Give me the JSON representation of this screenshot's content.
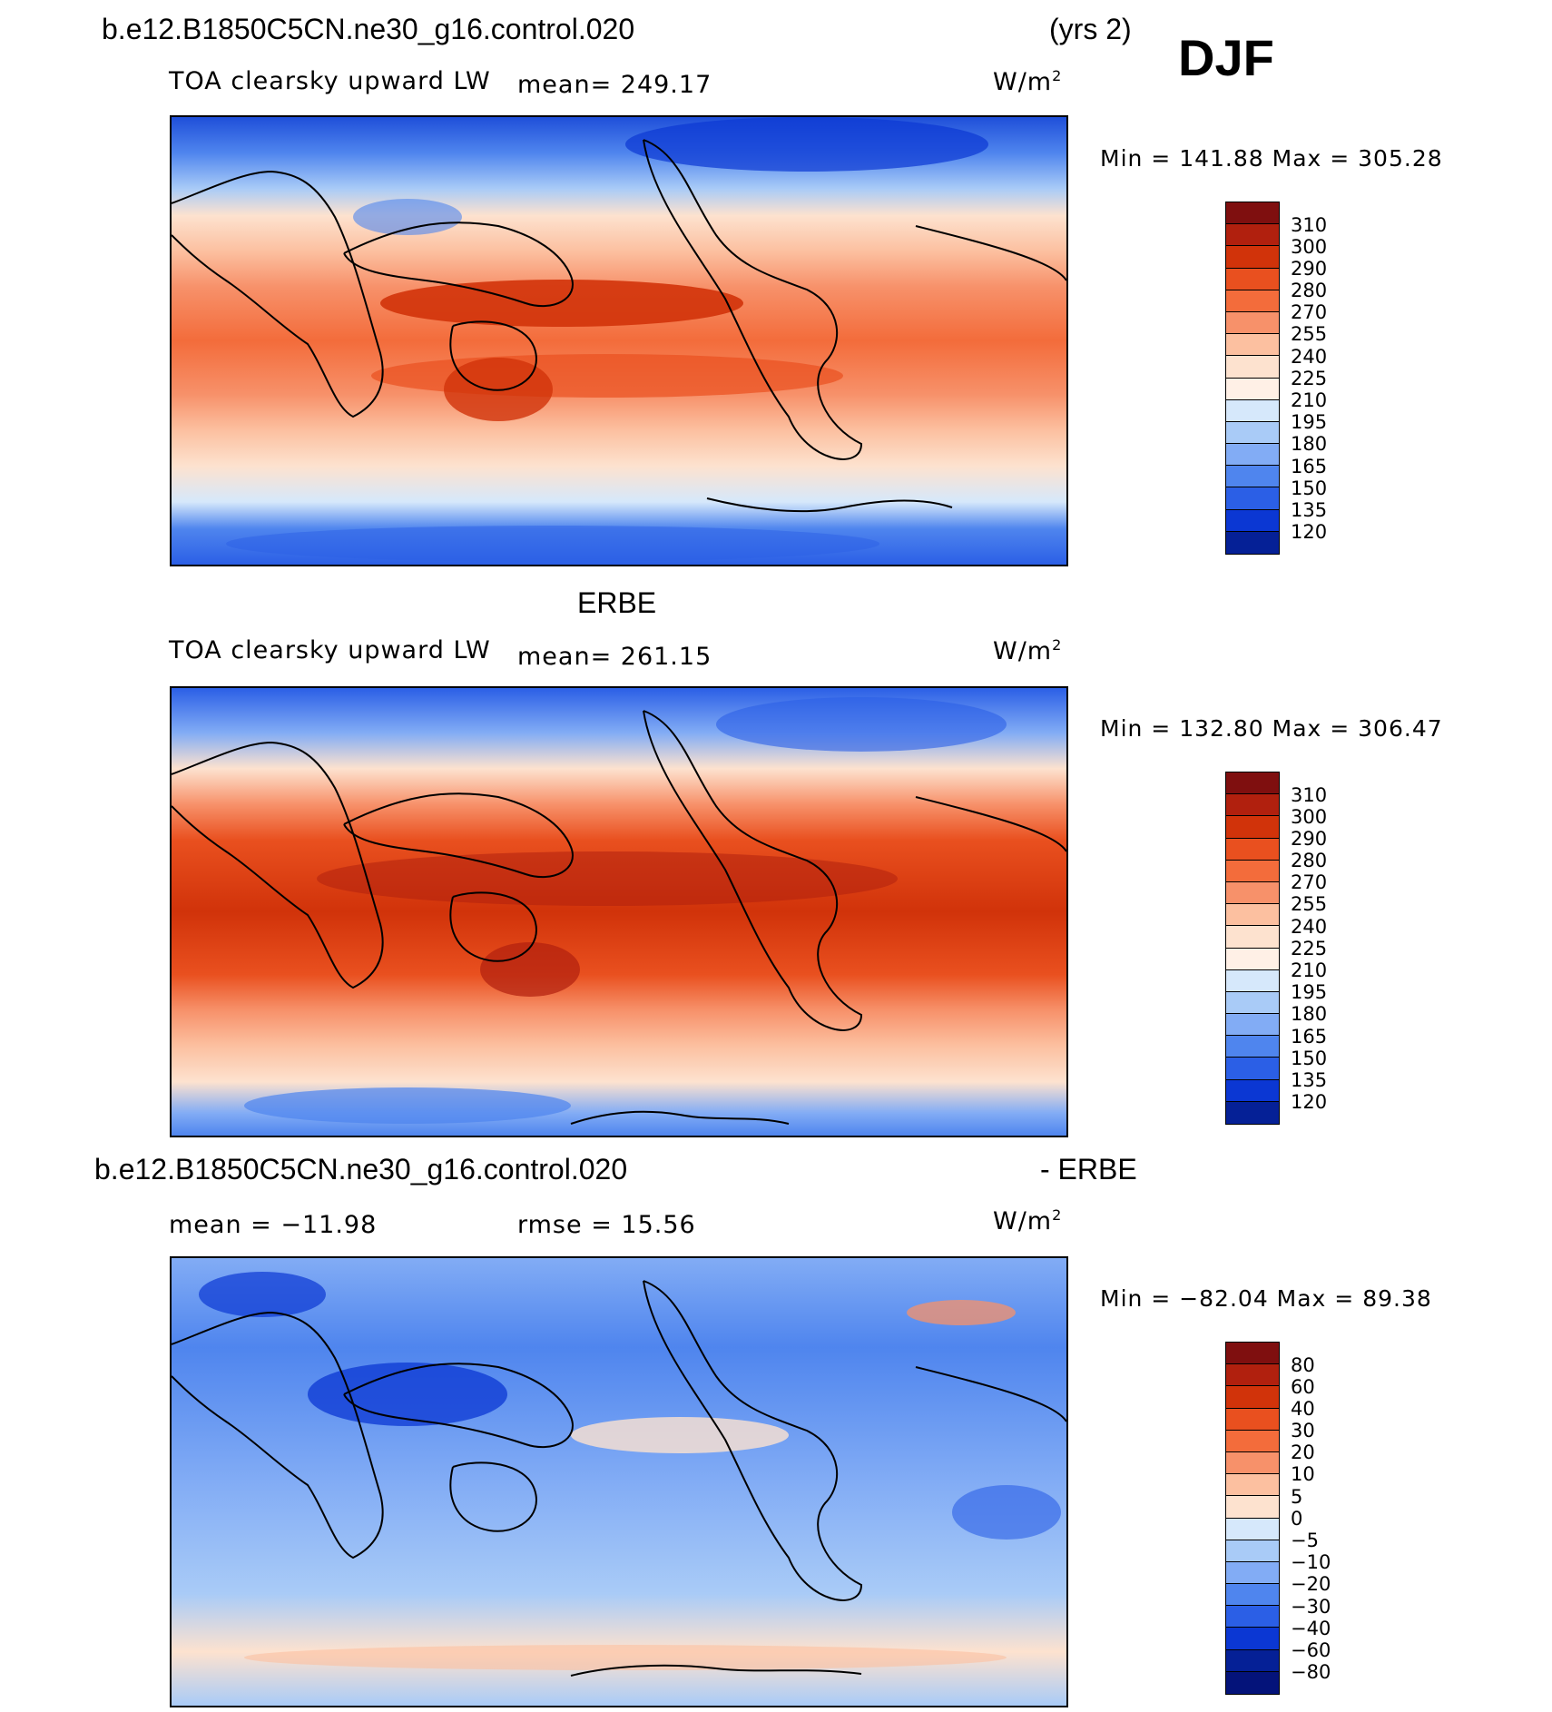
{
  "header": {
    "case": "b.e12.B1850C5CN.ne30_g16.control.020",
    "years": "(yrs 2)",
    "season": "DJF"
  },
  "panel_a": {
    "variable": "TOA clearsky upward LW",
    "mean_text": "mean= 249.17",
    "units": "W/m",
    "units_sup": "2",
    "minmax": "Min  =  141.88  Max  =  305.28"
  },
  "panel_b": {
    "title": "ERBE",
    "variable": "TOA clearsky upward LW",
    "mean_text": "mean= 261.15",
    "units": "W/m",
    "units_sup": "2",
    "minmax": "Min  =  132.80  Max  =  306.47"
  },
  "panel_c": {
    "title_left": "b.e12.B1850C5CN.ne30_g16.control.020",
    "title_right": "- ERBE",
    "mean_text": "mean  =  −11.98",
    "rmse_text": "rmse  =    15.56",
    "units": "W/m",
    "units_sup": "2",
    "minmax": "Min  =  −82.04  Max  =    89.38"
  },
  "colorbar_abs": {
    "labels": [
      "310",
      "300",
      "290",
      "280",
      "270",
      "255",
      "240",
      "225",
      "210",
      "195",
      "180",
      "165",
      "150",
      "135",
      "120"
    ],
    "colors": [
      "#7f0f0f",
      "#b1200e",
      "#d1330a",
      "#e9501f",
      "#f36c3b",
      "#f7916a",
      "#fcc0a0",
      "#fde2cf",
      "#fff0e6",
      "#d6e8fb",
      "#a9cbf7",
      "#82acf5",
      "#4f85ee",
      "#2b5fe6",
      "#0b37d3",
      "#052096"
    ]
  },
  "colorbar_diff": {
    "labels": [
      "80",
      "60",
      "40",
      "30",
      "20",
      "10",
      "5",
      "0",
      "−5",
      "−10",
      "−20",
      "−30",
      "−40",
      "−60",
      "−80"
    ],
    "colors": [
      "#7f0f0f",
      "#b1200e",
      "#d1330a",
      "#e9501f",
      "#f36c3b",
      "#f7916a",
      "#fcc0a0",
      "#fde2cf",
      "#d6e8fb",
      "#a9cbf7",
      "#82acf5",
      "#4f85ee",
      "#2b5fe6",
      "#0b37d3",
      "#052096",
      "#04137a"
    ]
  },
  "chart_data": [
    {
      "type": "heatmap",
      "title": "b.e12.B1850C5CN.ne30_g16.control.020 (yrs 2) DJF",
      "subtitle": "TOA clearsky upward LW",
      "units": "W/m2",
      "mean": 249.17,
      "min": 141.88,
      "max": 305.28,
      "levels": [
        120,
        135,
        150,
        165,
        180,
        195,
        210,
        225,
        240,
        255,
        270,
        280,
        290,
        300,
        310
      ]
    },
    {
      "type": "heatmap",
      "title": "ERBE",
      "subtitle": "TOA clearsky upward LW",
      "units": "W/m2",
      "mean": 261.15,
      "min": 132.8,
      "max": 306.47,
      "levels": [
        120,
        135,
        150,
        165,
        180,
        195,
        210,
        225,
        240,
        255,
        270,
        280,
        290,
        300,
        310
      ]
    },
    {
      "type": "heatmap",
      "title": "b.e12.B1850C5CN.ne30_g16.control.020 - ERBE",
      "units": "W/m2",
      "mean": -11.98,
      "rmse": 15.56,
      "min": -82.04,
      "max": 89.38,
      "levels": [
        -80,
        -60,
        -40,
        -30,
        -20,
        -10,
        -5,
        0,
        5,
        10,
        20,
        30,
        40,
        60,
        80
      ]
    }
  ]
}
